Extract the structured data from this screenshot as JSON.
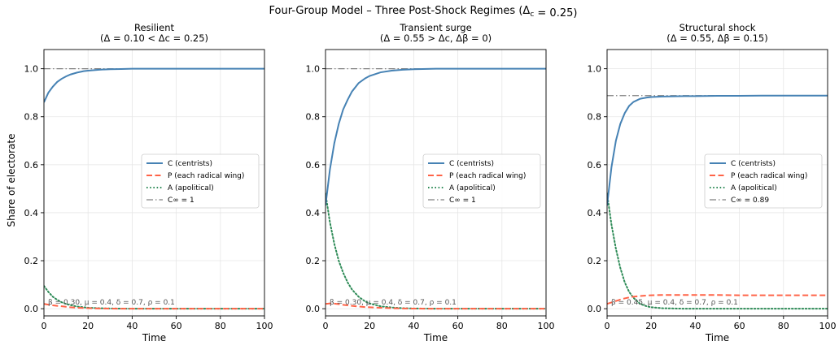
{
  "figure": {
    "suptitle": "Four-Group Model – Three Post-Shock Regimes  (Δc = 0.25)",
    "ylabel": "Share of electorate"
  },
  "colors": {
    "C": "#4682b4",
    "P": "#ff6347",
    "A": "#2e8b57",
    "Cinf": "#808080"
  },
  "chart_data": [
    {
      "type": "line",
      "title": "Resilient",
      "subtitle": "(Δ = 0.10 < Δc = 0.25)",
      "xlabel": "Time",
      "ylabel": "Share of electorate",
      "xlim": [
        0,
        100
      ],
      "ylim": [
        -0.03,
        1.08
      ],
      "xticks": [
        0,
        20,
        40,
        60,
        80,
        100
      ],
      "yticks": [
        0.0,
        0.2,
        0.4,
        0.6,
        0.8,
        1.0
      ],
      "grid": true,
      "legend_position": "center-right",
      "annotation": "β = 0.30,  μ = 0.4,  δ = 0.7,  ρ = 0.1",
      "x": [
        0,
        2,
        4,
        6,
        8,
        10,
        12,
        15,
        18,
        20,
        25,
        30,
        35,
        40,
        50,
        60,
        70,
        80,
        90,
        100
      ],
      "series": [
        {
          "name": "C (centrists)",
          "key": "C",
          "style": "solid",
          "values": [
            0.86,
            0.9,
            0.925,
            0.945,
            0.958,
            0.968,
            0.976,
            0.984,
            0.99,
            0.992,
            0.996,
            0.998,
            0.999,
            1.0,
            1.0,
            1.0,
            1.0,
            1.0,
            1.0,
            1.0
          ]
        },
        {
          "name": "P (each radical wing)",
          "key": "P",
          "style": "dashed",
          "values": [
            0.02,
            0.017,
            0.014,
            0.012,
            0.01,
            0.008,
            0.006,
            0.004,
            0.003,
            0.002,
            0.001,
            0.0005,
            0.0,
            0.0,
            0.0,
            0.0,
            0.0,
            0.0,
            0.0,
            0.0
          ]
        },
        {
          "name": "A (apolitical)",
          "key": "A",
          "style": "dotted",
          "values": [
            0.095,
            0.07,
            0.05,
            0.037,
            0.027,
            0.02,
            0.015,
            0.009,
            0.006,
            0.004,
            0.002,
            0.001,
            0.0005,
            0.0,
            0.0,
            0.0,
            0.0,
            0.0,
            0.0,
            0.0
          ]
        },
        {
          "name": "C∞ = 1",
          "key": "Cinf",
          "style": "dashdot",
          "constant": 1.0
        }
      ]
    },
    {
      "type": "line",
      "title": "Transient surge",
      "subtitle": "(Δ = 0.55 > Δc,  Δβ = 0)",
      "xlabel": "Time",
      "xlim": [
        0,
        100
      ],
      "ylim": [
        -0.03,
        1.08
      ],
      "xticks": [
        0,
        20,
        40,
        60,
        80,
        100
      ],
      "yticks": [
        0.0,
        0.2,
        0.4,
        0.6,
        0.8,
        1.0
      ],
      "grid": true,
      "legend_position": "center-right",
      "annotation": "β = 0.30,  μ = 0.4,  δ = 0.7,  ρ = 0.1",
      "x": [
        0,
        2,
        4,
        6,
        8,
        10,
        12,
        15,
        18,
        20,
        25,
        30,
        35,
        40,
        50,
        60,
        70,
        80,
        90,
        100
      ],
      "series": [
        {
          "name": "C (centrists)",
          "key": "C",
          "style": "solid",
          "values": [
            0.43,
            0.58,
            0.69,
            0.77,
            0.83,
            0.87,
            0.905,
            0.94,
            0.96,
            0.97,
            0.985,
            0.992,
            0.996,
            0.998,
            1.0,
            1.0,
            1.0,
            1.0,
            1.0,
            1.0
          ]
        },
        {
          "name": "P (each radical wing)",
          "key": "P",
          "style": "dashed",
          "values": [
            0.02,
            0.022,
            0.021,
            0.019,
            0.016,
            0.014,
            0.012,
            0.009,
            0.007,
            0.006,
            0.004,
            0.002,
            0.001,
            0.0005,
            0.0,
            0.0,
            0.0,
            0.0,
            0.0,
            0.0
          ]
        },
        {
          "name": "A (apolitical)",
          "key": "A",
          "style": "dotted",
          "values": [
            0.48,
            0.36,
            0.27,
            0.2,
            0.15,
            0.11,
            0.08,
            0.05,
            0.03,
            0.022,
            0.01,
            0.005,
            0.002,
            0.001,
            0.0,
            0.0,
            0.0,
            0.0,
            0.0,
            0.0
          ]
        },
        {
          "name": "C∞ = 1",
          "key": "Cinf",
          "style": "dashdot",
          "constant": 1.0
        }
      ]
    },
    {
      "type": "line",
      "title": "Structural shock",
      "subtitle": "(Δ = 0.55,  Δβ = 0.15)",
      "xlabel": "Time",
      "xlim": [
        0,
        100
      ],
      "ylim": [
        -0.03,
        1.08
      ],
      "xticks": [
        0,
        20,
        40,
        60,
        80,
        100
      ],
      "yticks": [
        0.0,
        0.2,
        0.4,
        0.6,
        0.8,
        1.0
      ],
      "grid": true,
      "legend_position": "center-right",
      "annotation": "β = 0.45,  μ = 0.4,  δ = 0.7,  ρ = 0.1",
      "x": [
        0,
        2,
        4,
        6,
        8,
        10,
        12,
        15,
        18,
        20,
        25,
        30,
        35,
        40,
        50,
        60,
        70,
        80,
        90,
        100
      ],
      "series": [
        {
          "name": "C (centrists)",
          "key": "C",
          "style": "solid",
          "values": [
            0.43,
            0.59,
            0.7,
            0.77,
            0.815,
            0.845,
            0.862,
            0.875,
            0.88,
            0.882,
            0.884,
            0.885,
            0.886,
            0.886,
            0.887,
            0.887,
            0.888,
            0.888,
            0.888,
            0.888
          ]
        },
        {
          "name": "P (each radical wing)",
          "key": "P",
          "style": "dashed",
          "values": [
            0.02,
            0.026,
            0.032,
            0.038,
            0.043,
            0.047,
            0.05,
            0.053,
            0.055,
            0.056,
            0.057,
            0.057,
            0.057,
            0.057,
            0.057,
            0.056,
            0.056,
            0.056,
            0.056,
            0.056
          ]
        },
        {
          "name": "A (apolitical)",
          "key": "A",
          "style": "dotted",
          "values": [
            0.48,
            0.35,
            0.25,
            0.17,
            0.11,
            0.07,
            0.045,
            0.02,
            0.01,
            0.006,
            0.002,
            0.001,
            0.0,
            0.0,
            0.0,
            0.0,
            0.0,
            0.0,
            0.0,
            0.0
          ]
        },
        {
          "name": "C∞ = 0.89",
          "key": "Cinf",
          "style": "dashdot",
          "constant": 0.888
        }
      ]
    }
  ]
}
